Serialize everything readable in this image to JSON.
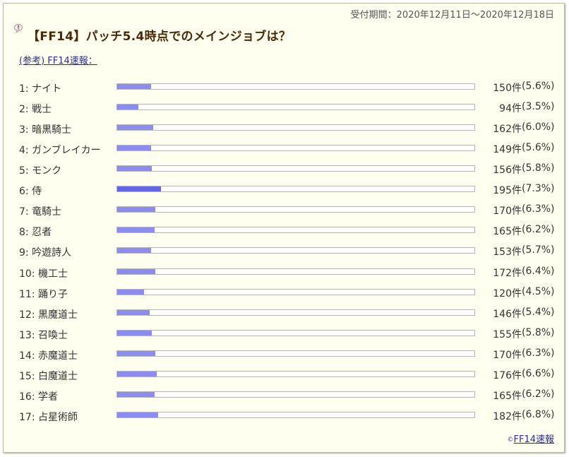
{
  "header": {
    "period": "受付期間：2020年12月11日〜2020年12月18日",
    "title": "【FF14】パッチ5.4時点でのメインジョブは？"
  },
  "ref_link": "(参考) FF14速報：",
  "footer": {
    "copyright_symbol": "©",
    "link": "FF14速報"
  },
  "colors": {
    "bar": "#8c8cf0",
    "bar_top": "#6464e6",
    "title": "#4a2808",
    "link": "#2c2c9a"
  },
  "chart_data": {
    "type": "bar",
    "orientation": "horizontal",
    "categories": [
      "1: ナイト",
      "2: 戦士",
      "3: 暗黒騎士",
      "4: ガンブレイカー",
      "5: モンク",
      "6: 侍",
      "7: 竜騎士",
      "8: 忍者",
      "9: 吟遊詩人",
      "10: 機工士",
      "11: 踊り子",
      "12: 黒魔道士",
      "13: 召喚士",
      "14: 赤魔道士",
      "15: 白魔道士",
      "16: 学者",
      "17: 占星術師"
    ],
    "values": [
      150,
      94,
      162,
      149,
      156,
      195,
      170,
      165,
      153,
      172,
      120,
      146,
      155,
      170,
      176,
      165,
      182
    ],
    "percents": [
      5.6,
      3.5,
      6.0,
      5.6,
      5.8,
      7.3,
      6.3,
      6.2,
      5.7,
      6.4,
      4.5,
      5.4,
      5.8,
      6.3,
      6.6,
      6.2,
      6.8
    ],
    "count_labels": [
      "150件",
      "94件",
      "162件",
      "149件",
      "156件",
      "195件",
      "170件",
      "165件",
      "153件",
      "172件",
      "120件",
      "146件",
      "155件",
      "170件",
      "176件",
      "165件",
      "182件"
    ],
    "percent_labels": [
      "(5.6%)",
      "(3.5%)",
      "(6.0%)",
      "(5.6%)",
      "(5.8%)",
      "(7.3%)",
      "(6.3%)",
      "(6.2%)",
      "(5.7%)",
      "(6.4%)",
      "(4.5%)",
      "(5.4%)",
      "(5.8%)",
      "(6.3%)",
      "(6.6%)",
      "(6.2%)",
      "(6.8%)"
    ],
    "xlim": [
      0,
      100
    ],
    "highlight_index": 5
  }
}
